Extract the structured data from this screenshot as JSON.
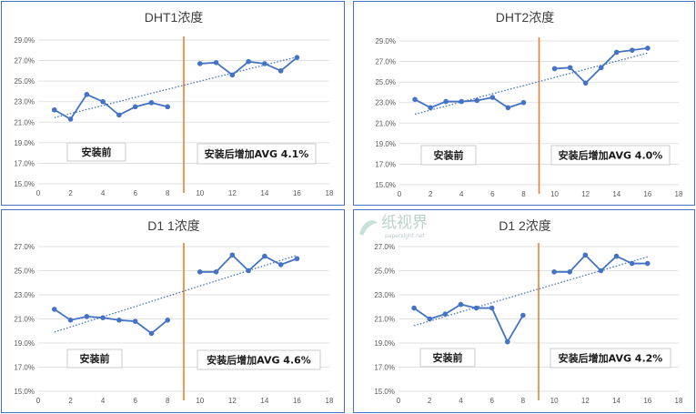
{
  "colors": {
    "line": "#4472c4",
    "divider": "#ed7d31",
    "grid": "#d9d9d9",
    "border": "#4472c4",
    "trend": "#4472c4"
  },
  "chart_data": [
    {
      "type": "line",
      "title": "DHT1浓度",
      "xlim": [
        0,
        18
      ],
      "x_ticks": [
        0,
        2,
        4,
        6,
        8,
        10,
        12,
        14,
        16,
        18
      ],
      "ylim": [
        15.0,
        29.0
      ],
      "y_ticks": [
        "15.0%",
        "17.0%",
        "19.0%",
        "21.0%",
        "23.0%",
        "25.0%",
        "27.0%",
        "29.0%"
      ],
      "series": [
        {
          "x": [
            1,
            2,
            3,
            4,
            5,
            6,
            7,
            8,
            10,
            11,
            12,
            13,
            14,
            15,
            16
          ],
          "y": [
            22.2,
            21.3,
            23.7,
            23.0,
            21.7,
            22.5,
            22.9,
            22.5,
            26.7,
            26.8,
            25.6,
            26.9,
            26.7,
            26.0,
            27.3
          ]
        }
      ],
      "trendline": "linear",
      "divider_x": 9,
      "annotations": {
        "before": "安装前",
        "after": "安装后增加AVG 4.1%"
      }
    },
    {
      "type": "line",
      "title": "DHT2浓度",
      "xlim": [
        0,
        18
      ],
      "x_ticks": [
        0,
        2,
        4,
        6,
        8,
        10,
        12,
        14,
        16,
        18
      ],
      "ylim": [
        15.0,
        29.0
      ],
      "y_ticks": [
        "15.0%",
        "17.0%",
        "19.0%",
        "21.0%",
        "23.0%",
        "25.0%",
        "27.0%",
        "29.0%"
      ],
      "series": [
        {
          "x": [
            1,
            2,
            3,
            4,
            5,
            6,
            7,
            8,
            10,
            11,
            12,
            13,
            14,
            15,
            16
          ],
          "y": [
            23.3,
            22.5,
            23.1,
            23.1,
            23.2,
            23.5,
            22.5,
            23.0,
            26.3,
            26.4,
            24.9,
            26.4,
            27.9,
            28.1,
            28.3
          ]
        }
      ],
      "trendline": "linear",
      "divider_x": 9,
      "annotations": {
        "before": "安装前",
        "after": "安装后增加AVG 4.0%"
      }
    },
    {
      "type": "line",
      "title": "D1 1浓度",
      "xlim": [
        0,
        18
      ],
      "x_ticks": [
        0,
        2,
        4,
        6,
        8,
        10,
        12,
        14,
        16,
        18
      ],
      "ylim": [
        15.0,
        27.0
      ],
      "y_ticks": [
        "15.0%",
        "17.0%",
        "19.0%",
        "21.0%",
        "23.0%",
        "25.0%",
        "27.0%"
      ],
      "series": [
        {
          "x": [
            1,
            2,
            3,
            4,
            5,
            6,
            7,
            8,
            10,
            11,
            12,
            13,
            14,
            15,
            16
          ],
          "y": [
            21.8,
            20.9,
            21.2,
            21.1,
            20.9,
            20.8,
            19.8,
            20.9,
            24.9,
            24.9,
            26.3,
            25.0,
            26.2,
            25.5,
            26.0
          ]
        }
      ],
      "trendline": "linear",
      "divider_x": 9,
      "annotations": {
        "before": "安装前",
        "after": "安装后增加AVG 4.6%"
      }
    },
    {
      "type": "line",
      "title": "D1 2浓度",
      "xlim": [
        0,
        18
      ],
      "x_ticks": [
        0,
        2,
        4,
        6,
        8,
        10,
        12,
        14,
        16,
        18
      ],
      "ylim": [
        15.0,
        27.0
      ],
      "y_ticks": [
        "15.0%",
        "17.0%",
        "19.0%",
        "21.0%",
        "23.0%",
        "25.0%",
        "27.0%"
      ],
      "series": [
        {
          "x": [
            1,
            2,
            3,
            4,
            5,
            6,
            7,
            8,
            10,
            11,
            12,
            13,
            14,
            15,
            16
          ],
          "y": [
            21.9,
            21.0,
            21.4,
            22.2,
            21.9,
            21.9,
            19.1,
            21.3,
            24.9,
            24.9,
            26.3,
            25.0,
            26.2,
            25.6,
            25.6
          ]
        }
      ],
      "trendline": "linear",
      "divider_x": 9,
      "annotations": {
        "before": "安装前",
        "after": "安装后增加AVG 4.2%"
      }
    }
  ],
  "watermark": {
    "logo_text": "纸视界",
    "url": "papersight.net"
  }
}
